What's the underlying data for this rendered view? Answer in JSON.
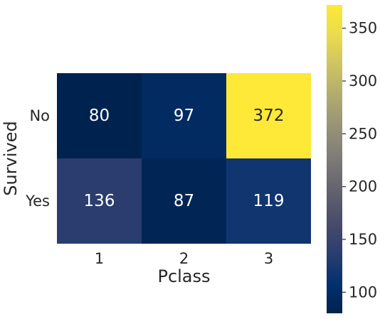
{
  "chart_data": {
    "type": "heatmap",
    "xlabel": "Pclass",
    "ylabel": "Survived",
    "x_categories": [
      "1",
      "2",
      "3"
    ],
    "y_categories": [
      "No",
      "Yes"
    ],
    "values": [
      [
        80,
        97,
        372
      ],
      [
        136,
        87,
        119
      ]
    ],
    "colormap": "cividis",
    "colorbar": {
      "min": 80,
      "max": 372,
      "ticks": [
        100,
        150,
        200,
        250,
        300,
        350
      ],
      "tick_labels": [
        "100",
        "150",
        "200",
        "250",
        "300",
        "350"
      ]
    },
    "annotation_colors": {
      "light": "#ffffff",
      "dark": "#262626"
    }
  }
}
